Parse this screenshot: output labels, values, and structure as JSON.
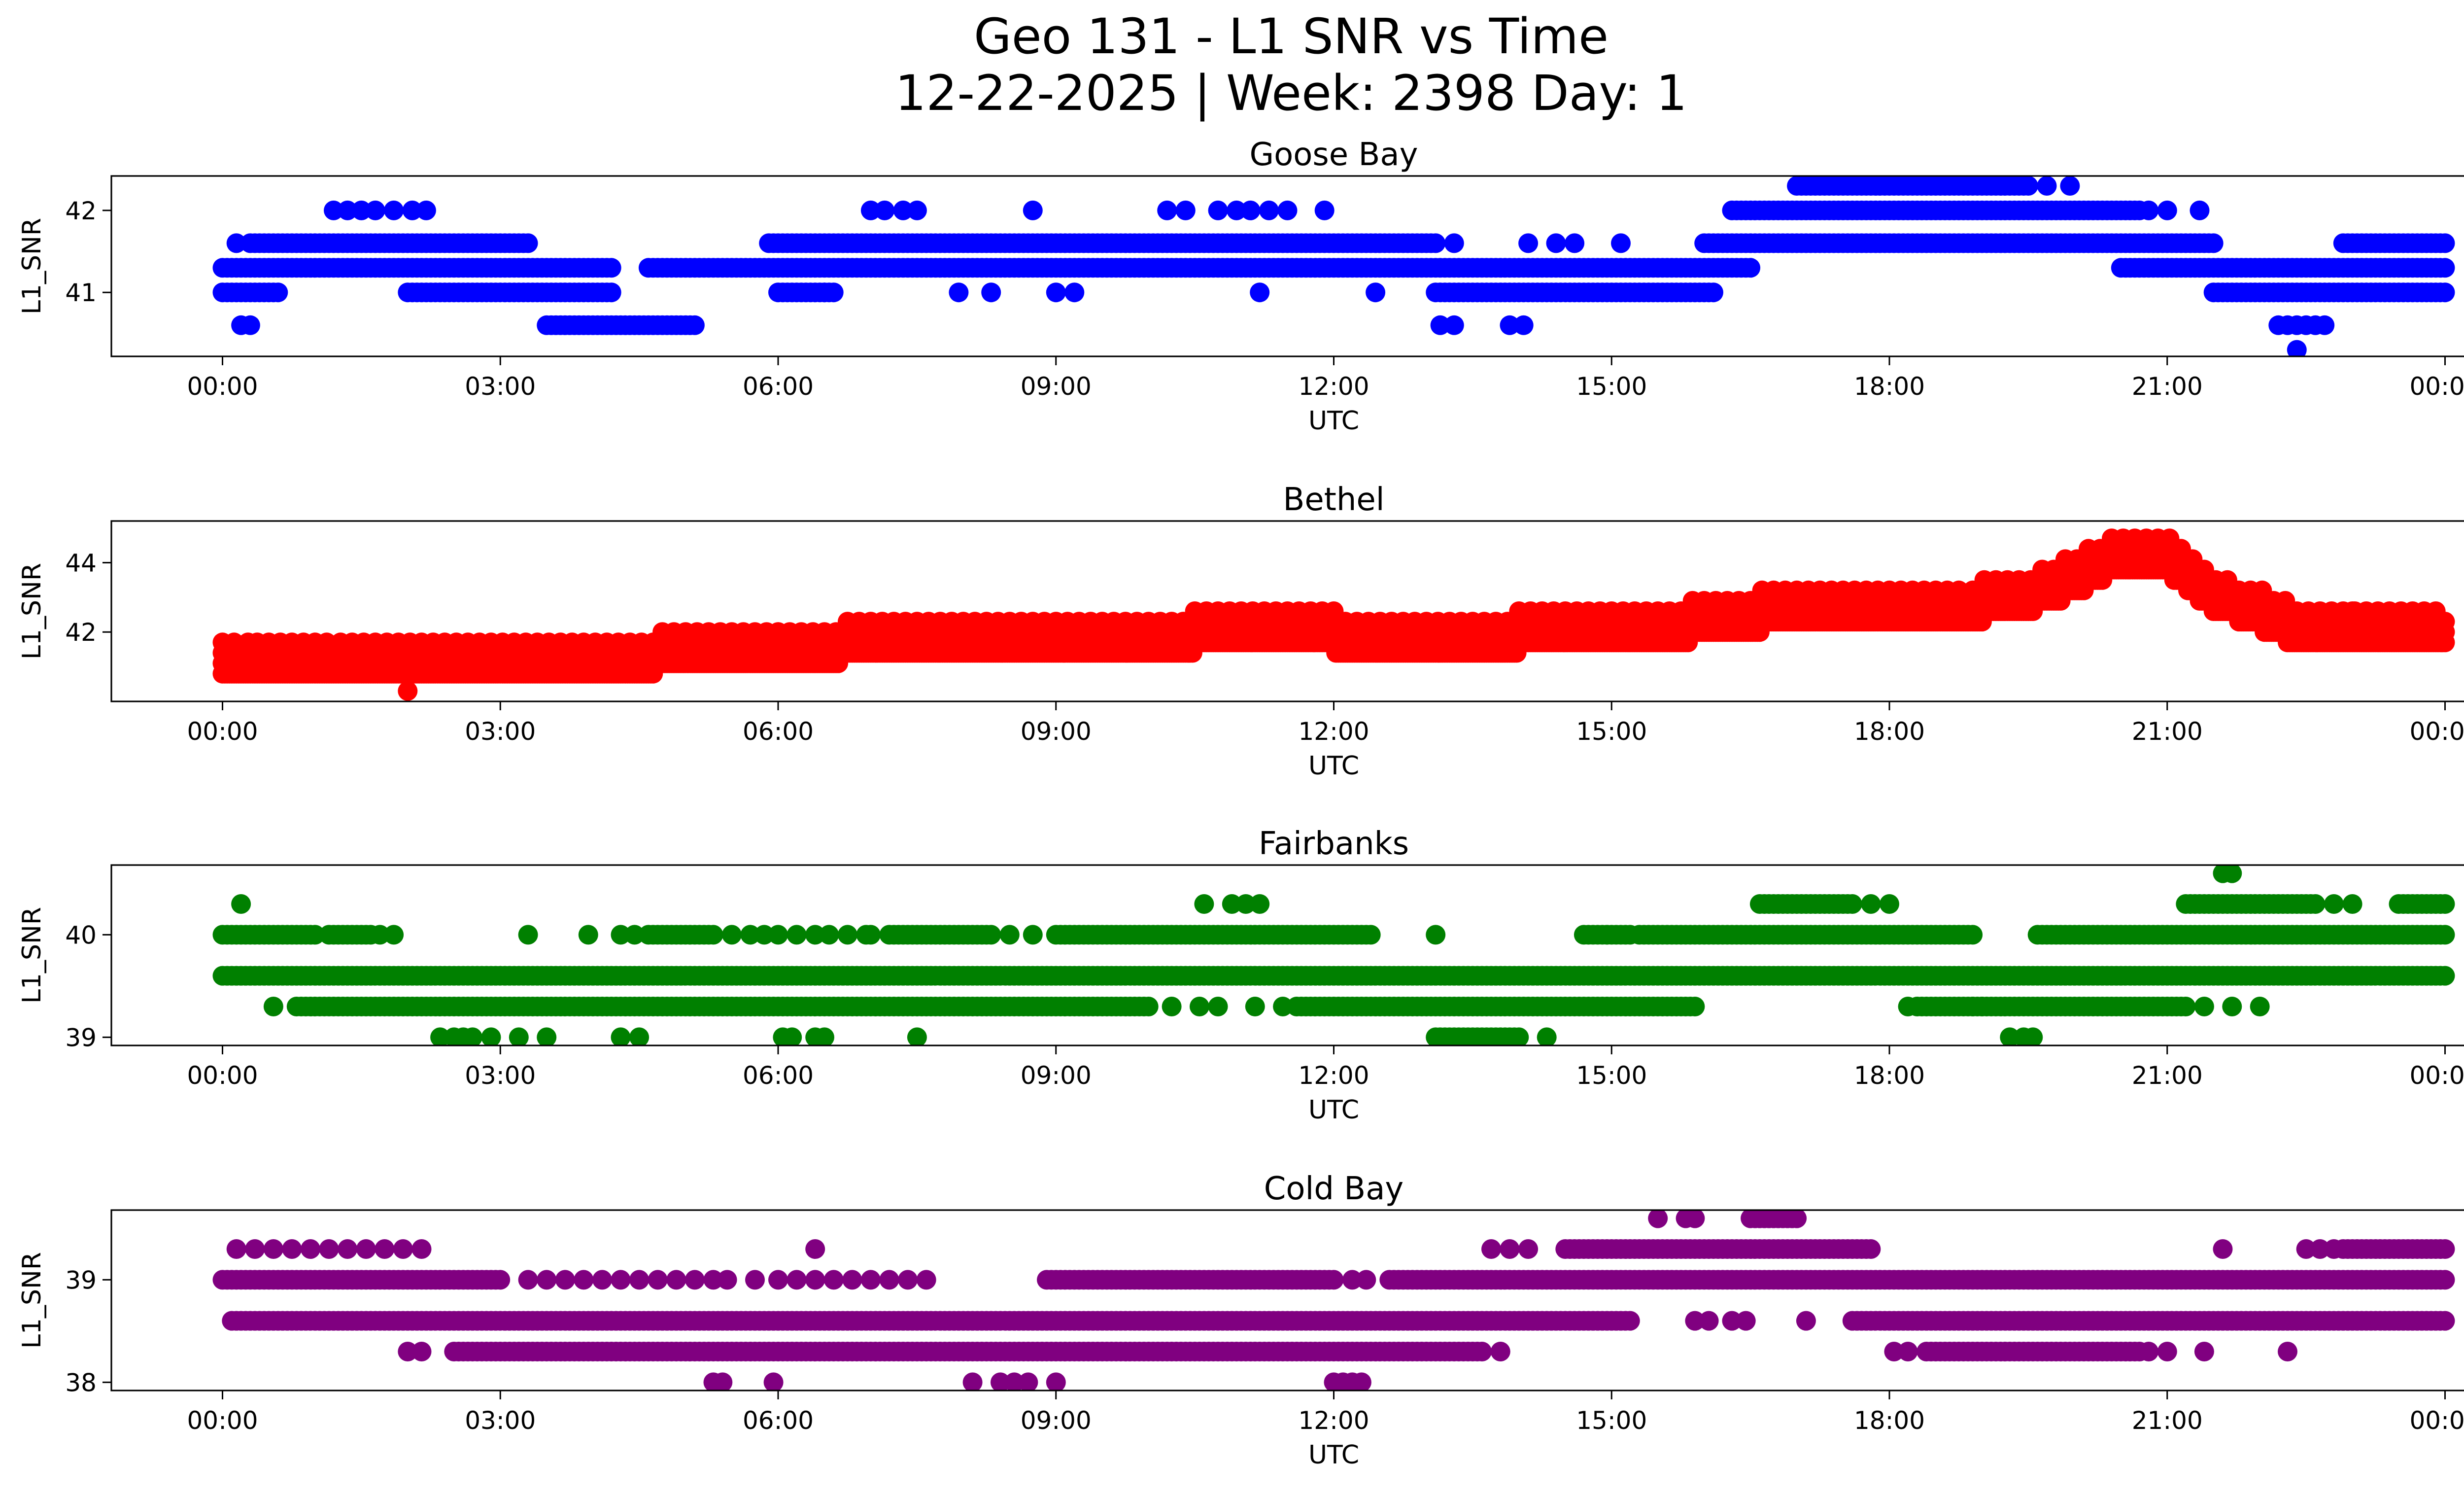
{
  "title": "Geo 131 - L1 SNR vs Time",
  "subtitle": "12-22-2025 | Week: 2398 Day: 1",
  "chart_data": [
    {
      "type": "scatter",
      "title": "Goose Bay",
      "xlabel": "UTC",
      "ylabel": "L1_SNR",
      "color": "#0000ff",
      "x_ticks": [
        "00:00",
        "03:00",
        "06:00",
        "09:00",
        "12:00",
        "15:00",
        "18:00",
        "21:00",
        "00:00"
      ],
      "y_ticks": [
        41,
        42
      ],
      "xlim_hours": [
        -1.2,
        25.2
      ],
      "ylim": [
        40.22,
        42.42
      ],
      "series": [
        {
          "type": "band",
          "y": 41.3,
          "segments": [
            [
              0,
              4.2
            ],
            [
              4.6,
              16.5
            ],
            [
              20.5,
              24
            ]
          ]
        },
        {
          "type": "band",
          "y": 41.6,
          "segments": [
            [
              0.3,
              3.3
            ],
            [
              5.9,
              13.1
            ],
            [
              16,
              21.5
            ],
            [
              22.9,
              24
            ]
          ]
        },
        {
          "type": "band",
          "y": 41.0,
          "segments": [
            [
              0,
              0.6
            ],
            [
              2,
              4.2
            ],
            [
              6,
              6.6
            ],
            [
              13.1,
              16.1
            ],
            [
              21.5,
              24
            ]
          ]
        },
        {
          "type": "band",
          "y": 42.0,
          "segments": [
            [
              16.3,
              20.7
            ]
          ]
        },
        {
          "type": "band",
          "y": 40.6,
          "segments": [
            [
              3.5,
              5.1
            ]
          ]
        },
        {
          "type": "band",
          "y": 42.3,
          "segments": [
            [
              17,
              19.5
            ]
          ]
        },
        {
          "type": "points",
          "y": 42.0,
          "x": [
            1.2,
            1.35,
            1.5,
            1.65,
            1.85,
            2.05,
            2.2,
            7,
            7.15,
            7.35,
            7.5,
            8.75,
            10.2,
            10.4,
            10.75,
            10.95,
            11.1,
            11.3,
            11.5,
            11.9,
            20.8,
            21,
            21.35
          ]
        },
        {
          "type": "points",
          "y": 42.3,
          "x": [
            19.7,
            19.95
          ]
        },
        {
          "type": "points",
          "y": 41.6,
          "x": [
            0.15,
            13.3,
            14.1,
            14.4,
            14.6,
            15.1
          ]
        },
        {
          "type": "points",
          "y": 41.0,
          "x": [
            6.5,
            7.95,
            8.3,
            9.0,
            9.2,
            11.2,
            12.45
          ]
        },
        {
          "type": "points",
          "y": 40.6,
          "x": [
            0.2,
            0.3,
            13.15,
            13.3,
            13.9,
            14.05,
            22.2,
            22.3,
            22.4,
            22.5,
            22.6,
            22.7
          ]
        },
        {
          "type": "points",
          "y": 40.3,
          "x": [
            22.4
          ]
        }
      ]
    },
    {
      "type": "scatter",
      "title": "Bethel",
      "xlabel": "UTC",
      "ylabel": "L1_SNR",
      "color": "#ff0000",
      "x_ticks": [
        "00:00",
        "03:00",
        "06:00",
        "09:00",
        "12:00",
        "15:00",
        "18:00",
        "21:00",
        "00:00"
      ],
      "y_ticks": [
        42,
        44
      ],
      "xlim_hours": [
        -1.2,
        25.2
      ],
      "ylim": [
        40.0,
        45.2
      ],
      "trend": [
        [
          0,
          41.0
        ],
        [
          3,
          41.0
        ],
        [
          5,
          41.3
        ],
        [
          7,
          41.6
        ],
        [
          9,
          41.7
        ],
        [
          11,
          41.9
        ],
        [
          13,
          41.8
        ],
        [
          15,
          41.9
        ],
        [
          16,
          42.2
        ],
        [
          17,
          42.6
        ],
        [
          18.5,
          42.5
        ],
        [
          19.5,
          43.0
        ],
        [
          20,
          43.5
        ],
        [
          20.5,
          44.2
        ],
        [
          21,
          44.1
        ],
        [
          21.5,
          43.0
        ],
        [
          22,
          42.5
        ],
        [
          22.5,
          41.9
        ],
        [
          24,
          41.9
        ]
      ],
      "series": []
    },
    {
      "type": "scatter",
      "title": "Fairbanks",
      "xlabel": "UTC",
      "ylabel": "L1_SNR",
      "color": "#008000",
      "x_ticks": [
        "00:00",
        "03:00",
        "06:00",
        "09:00",
        "12:00",
        "15:00",
        "18:00",
        "21:00",
        "00:00"
      ],
      "y_ticks": [
        39,
        40
      ],
      "xlim_hours": [
        -1.2,
        25.2
      ],
      "ylim": [
        38.92,
        40.68
      ],
      "series": [
        {
          "type": "band",
          "y": 39.6,
          "segments": [
            [
              0,
              24
            ]
          ]
        },
        {
          "type": "band",
          "y": 40.0,
          "segments": [
            [
              0,
              1.0
            ],
            [
              1.15,
              1.6
            ],
            [
              4.6,
              5.3
            ],
            [
              7.2,
              8.3
            ],
            [
              9,
              12.4
            ],
            [
              14.7,
              15.2
            ],
            [
              15.3,
              18.9
            ],
            [
              19.6,
              24
            ]
          ]
        },
        {
          "type": "band",
          "y": 39.3,
          "segments": [
            [
              0.8,
              10.0
            ],
            [
              11.6,
              15.9
            ],
            [
              18.3,
              21.2
            ]
          ]
        },
        {
          "type": "band",
          "y": 40.3,
          "segments": [
            [
              16.6,
              17.6
            ],
            [
              21.2,
              22.6
            ],
            [
              23.5,
              24
            ]
          ]
        },
        {
          "type": "band",
          "y": 39.0,
          "segments": [
            [
              13.1,
              14.0
            ]
          ]
        },
        {
          "type": "points",
          "y": 40.0,
          "x": [
            1.7,
            1.85,
            3.3,
            3.95,
            4.3,
            4.45,
            5.5,
            5.7,
            5.85,
            6.0,
            6.2,
            6.4,
            6.55,
            6.75,
            6.95,
            7.0,
            8.5,
            8.75,
            13.1,
            14.95
          ]
        },
        {
          "type": "points",
          "y": 39.3,
          "x": [
            0.55,
            10.25,
            10.55,
            10.75,
            11.15,
            11.45,
            18.2,
            18.9,
            19.0,
            21.4,
            21.7,
            22.0
          ]
        },
        {
          "type": "points",
          "y": 39.0,
          "x": [
            2.35,
            2.5,
            2.6,
            2.7,
            2.9,
            3.2,
            3.5,
            4.3,
            4.5,
            6.05,
            6.15,
            6.4,
            6.5,
            7.5,
            14.3,
            19.3,
            19.45,
            19.55
          ]
        },
        {
          "type": "points",
          "y": 40.3,
          "x": [
            0.2,
            10.6,
            10.9,
            11.05,
            11.2,
            17.8,
            18.0,
            22.8,
            23.0
          ]
        },
        {
          "type": "points",
          "y": 40.6,
          "x": [
            21.6,
            21.7
          ]
        }
      ]
    },
    {
      "type": "scatter",
      "title": "Cold Bay",
      "xlabel": "UTC",
      "ylabel": "L1_SNR",
      "color": "#800080",
      "x_ticks": [
        "00:00",
        "03:00",
        "06:00",
        "09:00",
        "12:00",
        "15:00",
        "18:00",
        "21:00",
        "00:00"
      ],
      "y_ticks": [
        38,
        39
      ],
      "xlim_hours": [
        -1.2,
        25.2
      ],
      "ylim": [
        37.92,
        39.68
      ],
      "series": [
        {
          "type": "band",
          "y": 38.6,
          "segments": [
            [
              0.1,
              15.2
            ],
            [
              17.6,
              24
            ]
          ]
        },
        {
          "type": "band",
          "y": 39.0,
          "segments": [
            [
              0,
              3.0
            ],
            [
              8.9,
              12.0
            ],
            [
              12.6,
              24
            ]
          ]
        },
        {
          "type": "band",
          "y": 38.3,
          "segments": [
            [
              2.5,
              13.6
            ],
            [
              18.4,
              20.7
            ]
          ]
        },
        {
          "type": "band",
          "y": 39.3,
          "segments": [
            [
              14.5,
              17.8
            ],
            [
              22.9,
              24
            ]
          ]
        },
        {
          "type": "band",
          "y": 39.6,
          "segments": [
            [
              16.5,
              17.0
            ]
          ]
        },
        {
          "type": "points",
          "y": 39.3,
          "x": [
            0.15,
            0.35,
            0.55,
            0.75,
            0.95,
            1.15,
            1.35,
            1.55,
            1.75,
            1.95,
            2.15,
            6.4,
            13.7,
            13.9,
            14.1,
            22.5,
            22.65,
            22.8,
            21.6
          ]
        },
        {
          "type": "points",
          "y": 39.0,
          "x": [
            3.3,
            3.5,
            3.7,
            3.9,
            4.1,
            4.3,
            4.5,
            4.7,
            4.9,
            5.1,
            5.3,
            5.45,
            5.75,
            6.0,
            6.2,
            6.4,
            6.6,
            6.8,
            7.0,
            7.2,
            7.4,
            7.6,
            12.2,
            12.35
          ]
        },
        {
          "type": "points",
          "y": 38.3,
          "x": [
            2.0,
            2.15,
            13.8,
            18.05,
            18.2,
            20.8,
            21.0,
            21.4,
            22.3
          ]
        },
        {
          "type": "points",
          "y": 38.6,
          "x": [
            15.9,
            16.05,
            16.3,
            16.45,
            17.1
          ]
        },
        {
          "type": "points",
          "y": 38.0,
          "x": [
            5.3,
            5.4,
            5.95,
            8.1,
            8.4,
            8.55,
            8.7,
            9.0,
            12.0,
            12.1,
            12.2,
            12.3
          ]
        },
        {
          "type": "points",
          "y": 39.6,
          "x": [
            15.5,
            15.8,
            15.9
          ]
        }
      ]
    }
  ]
}
